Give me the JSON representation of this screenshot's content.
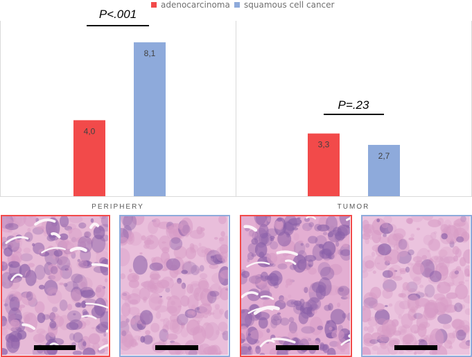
{
  "legend": {
    "items": [
      {
        "label": "adenocarcinoma",
        "color": "#F24A4A"
      },
      {
        "label": "squamous cell cancer",
        "color": "#8EAADB"
      }
    ]
  },
  "colors": {
    "adenocarcinoma": "#F24A4A",
    "squamous": "#8EAADB",
    "axis": "#D9D9D9",
    "label_text": "#595959",
    "tissue_light": "#E7B7D6",
    "tissue_dark": "#7C5AA0"
  },
  "chart_data": {
    "type": "bar",
    "title": "",
    "xlabel": "",
    "ylabel": "",
    "grid": false,
    "legend_position": "top",
    "ylim": [
      0,
      9
    ],
    "panels": [
      {
        "category": "PERIPHERY",
        "series": [
          {
            "name": "adenocarcinoma",
            "value": 4.0,
            "label": "4,0"
          },
          {
            "name": "squamous cell cancer",
            "value": 8.1,
            "label": "8,1"
          }
        ],
        "p_value": "P<.001"
      },
      {
        "category": "TUMOR",
        "series": [
          {
            "name": "adenocarcinoma",
            "value": 3.3,
            "label": "3,3"
          },
          {
            "name": "squamous cell cancer",
            "value": 2.7,
            "label": "2,7"
          }
        ],
        "p_value": "P=.23"
      }
    ]
  },
  "images": [
    {
      "group": "adenocarcinoma",
      "panel": "PERIPHERY",
      "icon": "histology-image"
    },
    {
      "group": "squamous cell cancer",
      "panel": "PERIPHERY",
      "icon": "histology-image"
    },
    {
      "group": "adenocarcinoma",
      "panel": "TUMOR",
      "icon": "histology-image"
    },
    {
      "group": "squamous cell cancer",
      "panel": "TUMOR",
      "icon": "histology-image"
    }
  ]
}
